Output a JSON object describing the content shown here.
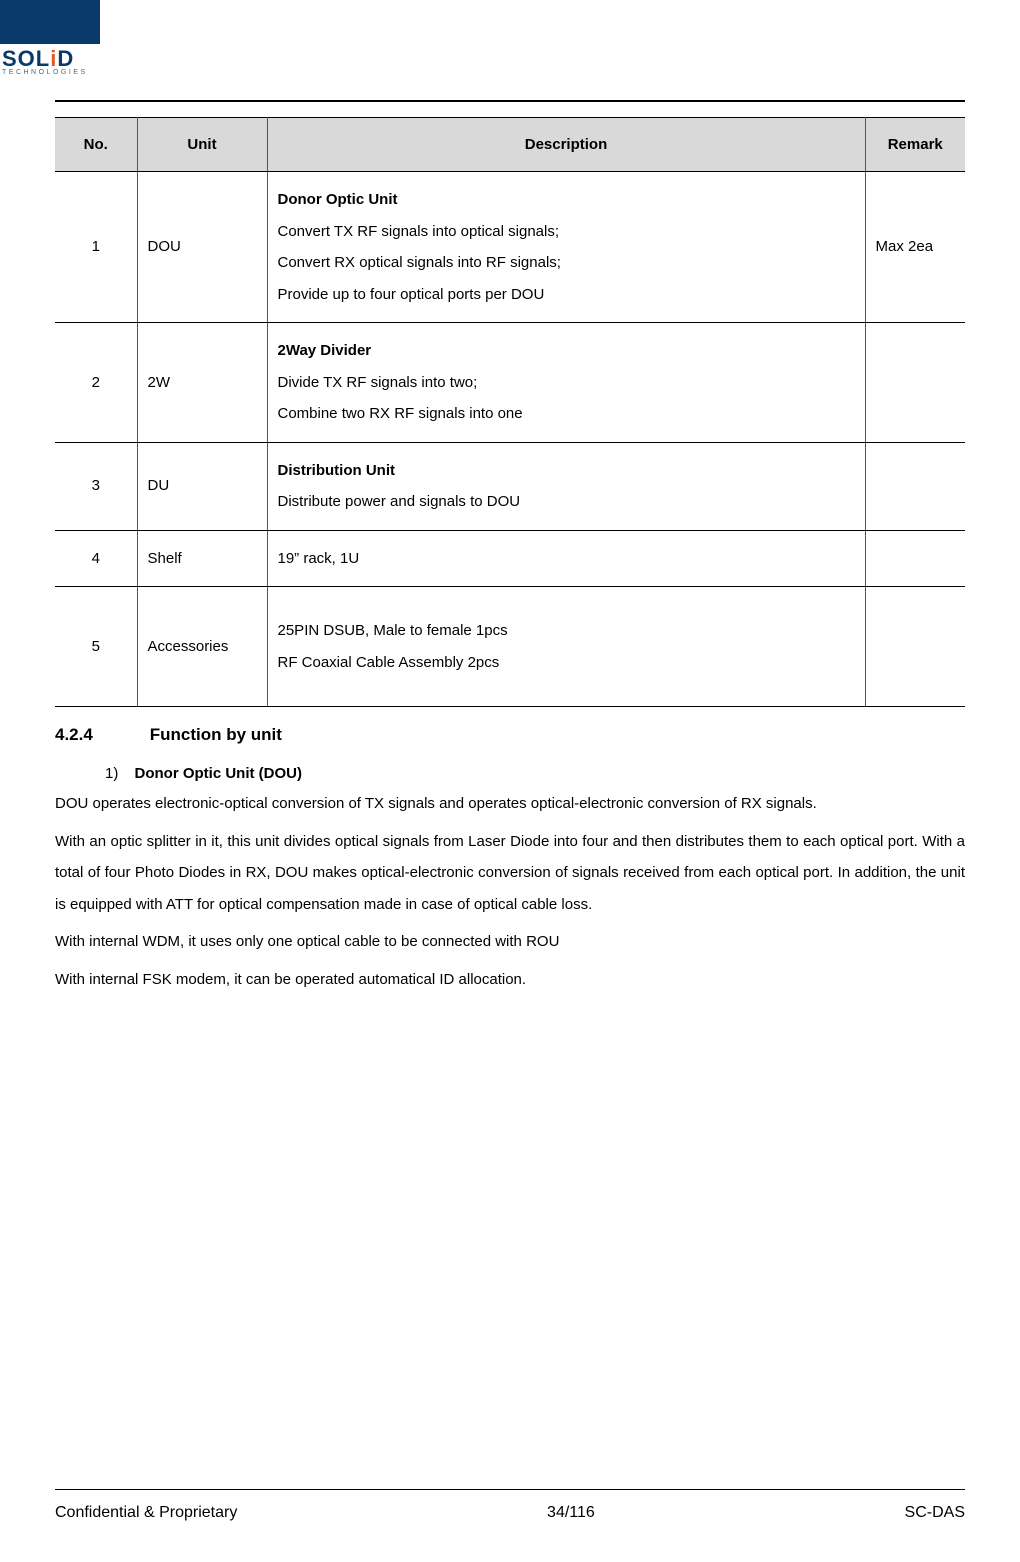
{
  "logo": {
    "brand": "SOLiD",
    "sub": "TECHNOLOGIES"
  },
  "table": {
    "headers": {
      "no": "No.",
      "unit": "Unit",
      "desc": "Description",
      "remark": "Remark"
    },
    "col_widths": {
      "no": 82,
      "unit": 130,
      "remark": 100
    },
    "header_bg": "#d9d9d9",
    "rows": [
      {
        "no": "1",
        "unit": "DOU",
        "title": "Donor Optic Unit",
        "lines": [
          "Convert TX RF signals into optical signals;",
          "Convert RX optical signals into RF signals;",
          "Provide up to four optical ports per DOU"
        ],
        "remark": "Max 2ea"
      },
      {
        "no": "2",
        "unit": "2W",
        "title": "2Way Divider",
        "lines": [
          "Divide TX RF signals into two;",
          "Combine two RX RF signals into one"
        ],
        "remark": ""
      },
      {
        "no": "3",
        "unit": "DU",
        "title": "Distribution Unit",
        "lines": [
          "Distribute power and signals to DOU"
        ],
        "remark": ""
      },
      {
        "no": "4",
        "unit": "Shelf",
        "title": "",
        "lines": [
          "19” rack, 1U"
        ],
        "remark": ""
      },
      {
        "no": "5",
        "unit": "Accessories",
        "title": "",
        "lines": [
          "25PIN DSUB, Male to female 1pcs",
          "RF Coaxial Cable Assembly 2pcs"
        ],
        "remark": ""
      }
    ]
  },
  "section": {
    "number": "4.2.4",
    "title": "Function by unit"
  },
  "item1": {
    "marker": "1)",
    "label": "Donor Optic Unit (DOU)"
  },
  "paragraphs": {
    "p1": "DOU operates electronic-optical conversion of TX signals and operates optical-electronic conversion of RX signals.",
    "p2": "With an optic splitter in it, this unit divides optical signals from Laser Diode into four and then distributes them to each optical port. With a total of four Photo Diodes in RX, DOU makes optical-electronic conversion of signals received from each optical port. In addition, the unit is equipped with ATT for optical compensation made in case of optical cable loss.",
    "p3": "With internal WDM, it uses only one optical cable to be connected with ROU",
    "p4": "With internal FSK modem, it can be operated automatical ID allocation."
  },
  "footer": {
    "left": "Confidential & Proprietary",
    "center": "34/116",
    "right": "SC-DAS"
  },
  "colors": {
    "logo_blue": "#0a3a6a",
    "logo_orange": "#e85a24",
    "rule": "#000000"
  }
}
